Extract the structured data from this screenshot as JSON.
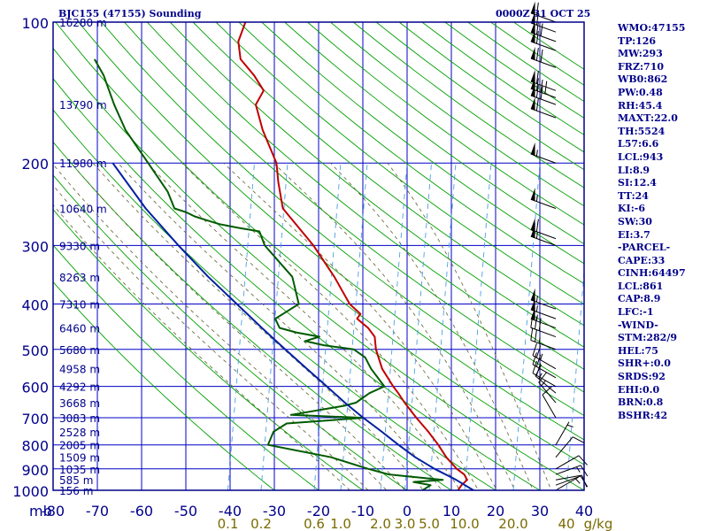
{
  "header": {
    "station_title": "BJC155 (47155) Sounding",
    "date_title": "0000Z 31 OCT 25"
  },
  "colors": {
    "frame": "#00008b",
    "grid": "#0000c8",
    "dry_adiabat": "#00a000",
    "moist_adiabat": "#606030",
    "mixing_ratio": "#4aa0e0",
    "temperature": "#c00000",
    "dewpoint": "#005a00",
    "parcel": "#0020a0",
    "wind_barb": "#000000",
    "mix_label": "#7a6a00"
  },
  "chart_data": {
    "type": "skew-t",
    "y_axis": {
      "unit": "mb",
      "scale": "log",
      "range": [
        1000,
        100
      ],
      "ticks": [
        100,
        200,
        300,
        400,
        500,
        600,
        700,
        800,
        900,
        1000
      ]
    },
    "x_axis": {
      "unit": "°C",
      "range": [
        -80,
        40
      ],
      "ticks": [
        -80,
        -70,
        -60,
        -50,
        -40,
        -30,
        -20,
        -10,
        0,
        10,
        20,
        30,
        40
      ],
      "tick_labels": [
        "-80",
        "-70",
        "-60",
        "-50",
        "-40",
        "-30",
        "-20",
        "-10",
        "0",
        "10",
        "20",
        "30",
        "40"
      ],
      "unit_label": "mb"
    },
    "mixing_ratio_labels": {
      "values": [
        "0.1",
        "0.2",
        "0.6",
        "1.0",
        "2.0",
        "3.0",
        "5.0",
        "10.0",
        "20.0",
        "40",
        "g/kg"
      ],
      "temps_at_1000mb": [
        -40.5,
        -33,
        -21,
        -15,
        -6,
        -0.5,
        5,
        13,
        24,
        36,
        45
      ]
    },
    "height_labels": [
      {
        "p": 100,
        "label": "16280 m"
      },
      {
        "p": 150,
        "label": "13790 m"
      },
      {
        "p": 200,
        "label": "11980 m"
      },
      {
        "p": 250,
        "label": "10640 m"
      },
      {
        "p": 300,
        "label": "9330 m"
      },
      {
        "p": 350,
        "label": "8263 m"
      },
      {
        "p": 400,
        "label": "7310 m"
      },
      {
        "p": 450,
        "label": "6460 m"
      },
      {
        "p": 500,
        "label": "5680 m"
      },
      {
        "p": 550,
        "label": "4958 m"
      },
      {
        "p": 600,
        "label": "4292 m"
      },
      {
        "p": 650,
        "label": "3668 m"
      },
      {
        "p": 700,
        "label": "3083 m"
      },
      {
        "p": 750,
        "label": "2528 m"
      },
      {
        "p": 800,
        "label": "2005 m"
      },
      {
        "p": 850,
        "label": "1509 m"
      },
      {
        "p": 900,
        "label": "1035 m"
      },
      {
        "p": 950,
        "label": "585 m"
      },
      {
        "p": 1000,
        "label": "156 m"
      }
    ],
    "series": [
      {
        "role": "temperature",
        "points": [
          [
            1000,
            11.5
          ],
          [
            975,
            12.0
          ],
          [
            950,
            13.0
          ],
          [
            925,
            12.0
          ],
          [
            900,
            10.0
          ],
          [
            850,
            7.0
          ],
          [
            800,
            4.5
          ],
          [
            750,
            1.5
          ],
          [
            700,
            -2.0
          ],
          [
            650,
            -5.5
          ],
          [
            620,
            -7.5
          ],
          [
            600,
            -9.0
          ],
          [
            550,
            -12.5
          ],
          [
            500,
            -15.0
          ],
          [
            470,
            -16.0
          ],
          [
            450,
            -18.0
          ],
          [
            430,
            -21.0
          ],
          [
            420,
            -20.5
          ],
          [
            400,
            -23.5
          ],
          [
            350,
            -28.5
          ],
          [
            300,
            -35.0
          ],
          [
            250,
            -44.0
          ],
          [
            220,
            -46.5
          ],
          [
            200,
            -48.0
          ],
          [
            170,
            -53.0
          ],
          [
            150,
            -56.0
          ],
          [
            145,
            -55.5
          ],
          [
            140,
            -55.0
          ],
          [
            130,
            -58.0
          ],
          [
            120,
            -62.0
          ],
          [
            110,
            -63.5
          ],
          [
            100,
            -63.0
          ]
        ]
      },
      {
        "role": "dewpoint",
        "points": [
          [
            1000,
            3.5
          ],
          [
            975,
            5.0
          ],
          [
            960,
            1.0
          ],
          [
            950,
            7.5
          ],
          [
            925,
            -5.0
          ],
          [
            900,
            -10.0
          ],
          [
            850,
            -19.0
          ],
          [
            800,
            -34.0
          ],
          [
            750,
            -33.5
          ],
          [
            720,
            -31.0
          ],
          [
            700,
            -14.0
          ],
          [
            690,
            -30.5
          ],
          [
            660,
            -19.0
          ],
          [
            650,
            -16.5
          ],
          [
            620,
            -14.0
          ],
          [
            600,
            -11.0
          ],
          [
            550,
            -15.0
          ],
          [
            520,
            -17.0
          ],
          [
            500,
            -20.0
          ],
          [
            490,
            -27.0
          ],
          [
            480,
            -31.5
          ],
          [
            470,
            -28.5
          ],
          [
            460,
            -34.0
          ],
          [
            450,
            -38.0
          ],
          [
            430,
            -39.5
          ],
          [
            420,
            -38.0
          ],
          [
            400,
            -35.0
          ],
          [
            350,
            -38.0
          ],
          [
            300,
            -46.0
          ],
          [
            280,
            -48.0
          ],
          [
            275,
            -53.0
          ],
          [
            270,
            -57.5
          ],
          [
            265,
            -60.5
          ],
          [
            260,
            -63.5
          ],
          [
            255,
            -65.5
          ],
          [
            250,
            -68.5
          ],
          [
            230,
            -71.0
          ],
          [
            200,
            -77.0
          ],
          [
            170,
            -84.0
          ],
          [
            150,
            -88.0
          ],
          [
            130,
            -92.0
          ],
          [
            120,
            -95.0
          ]
        ]
      },
      {
        "role": "parcel",
        "points": [
          [
            1000,
            15.0
          ],
          [
            950,
            10.5
          ],
          [
            900,
            5.0
          ],
          [
            850,
            0.0
          ],
          [
            800,
            -4.5
          ],
          [
            750,
            -9.0
          ],
          [
            700,
            -14.0
          ],
          [
            650,
            -19.0
          ],
          [
            600,
            -24.0
          ],
          [
            550,
            -29.5
          ],
          [
            500,
            -35.5
          ],
          [
            450,
            -42.0
          ],
          [
            400,
            -49.0
          ],
          [
            350,
            -57.0
          ],
          [
            300,
            -65.5
          ],
          [
            250,
            -75.0
          ],
          [
            200,
            -85.0
          ]
        ]
      }
    ],
    "winds": [
      {
        "p": 1000,
        "dir": 60,
        "spd": 5
      },
      {
        "p": 975,
        "dir": 70,
        "spd": 10
      },
      {
        "p": 950,
        "dir": 80,
        "spd": 10
      },
      {
        "p": 925,
        "dir": 70,
        "spd": 15
      },
      {
        "p": 900,
        "dir": 60,
        "spd": 10
      },
      {
        "p": 850,
        "dir": 40,
        "spd": 10
      },
      {
        "p": 800,
        "dir": 30,
        "spd": 5
      },
      {
        "p": 700,
        "dir": 330,
        "spd": 10
      },
      {
        "p": 650,
        "dir": 320,
        "spd": 15
      },
      {
        "p": 620,
        "dir": 310,
        "spd": 15
      },
      {
        "p": 600,
        "dir": 300,
        "spd": 20
      },
      {
        "p": 575,
        "dir": 300,
        "spd": 20
      },
      {
        "p": 550,
        "dir": 300,
        "spd": 25
      },
      {
        "p": 500,
        "dir": 290,
        "spd": 25
      },
      {
        "p": 470,
        "dir": 290,
        "spd": 30
      },
      {
        "p": 450,
        "dir": 290,
        "spd": 55
      },
      {
        "p": 430,
        "dir": 290,
        "spd": 55
      },
      {
        "p": 410,
        "dir": 290,
        "spd": 55
      },
      {
        "p": 300,
        "dir": 290,
        "spd": 55
      },
      {
        "p": 290,
        "dir": 290,
        "spd": 60
      },
      {
        "p": 250,
        "dir": 290,
        "spd": 55
      },
      {
        "p": 200,
        "dir": 290,
        "spd": 55
      },
      {
        "p": 160,
        "dir": 290,
        "spd": 60
      },
      {
        "p": 150,
        "dir": 290,
        "spd": 70
      },
      {
        "p": 145,
        "dir": 290,
        "spd": 80
      },
      {
        "p": 140,
        "dir": 290,
        "spd": 60
      },
      {
        "p": 125,
        "dir": 290,
        "spd": 70
      },
      {
        "p": 115,
        "dir": 290,
        "spd": 60
      },
      {
        "p": 110,
        "dir": 290,
        "spd": 70
      },
      {
        "p": 105,
        "dir": 290,
        "spd": 60
      },
      {
        "p": 100,
        "dir": 290,
        "spd": 60
      }
    ]
  },
  "stats": [
    "WMO:47155",
    "TP:126",
    "MW:293",
    "FRZ:710",
    "WB0:862",
    "PW:0.48",
    "RH:45.4",
    "MAXT:22.0",
    "TH:5524",
    "L57:6.6",
    "LCL:943",
    "LI:8.9",
    "SI:12.4",
    "TT:24",
    "KI:-6",
    "SW:30",
    "EI:3.7",
    "-PARCEL-",
    "CAPE:33",
    "CINH:64497",
    "LCL:861",
    "CAP:8.9",
    "LFC:-1",
    "-WIND-",
    "STM:282/9",
    "HEL:75",
    "SHR+:0.0",
    "SRDS:92",
    "EHI:0.0",
    "BRN:0.8",
    "BSHR:42"
  ]
}
